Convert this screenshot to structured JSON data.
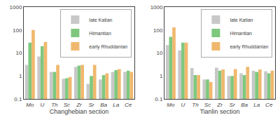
{
  "chart_data": [
    {
      "type": "bar",
      "categories": [
        "Mo",
        "U",
        "Th",
        "Sc",
        "Zr",
        "Sr",
        "Ba",
        "La",
        "Ce"
      ],
      "x_label": "Changhebian section",
      "series": [
        {
          "name": "late Katian",
          "color": "#c8c8c8",
          "values": [
            3.0,
            7.0,
            1.5,
            0.75,
            2.5,
            0.45,
            0.7,
            1.5,
            1.5
          ]
        },
        {
          "name": "Himantian",
          "color": "#7ec87e",
          "values": [
            28.0,
            20.0,
            1.5,
            0.8,
            2.8,
            1.0,
            1.1,
            1.8,
            1.7
          ]
        },
        {
          "name": "early Rhuddanian",
          "color": "#f0b86e",
          "values": [
            100.0,
            30.0,
            3.0,
            0.9,
            3.0,
            3.0,
            1.3,
            2.0,
            1.5
          ]
        }
      ],
      "ylim": [
        0.1,
        1000
      ],
      "yticks": [
        0.1,
        1,
        10,
        100,
        1000
      ],
      "log": "y",
      "grid": false,
      "legend": "upper right"
    },
    {
      "type": "bar",
      "categories": [
        "Mo",
        "U",
        "Th",
        "Sc",
        "Zr",
        "Sr",
        "Ba",
        "La",
        "Ce"
      ],
      "x_label": "Tianlin section",
      "series": [
        {
          "name": "late Katian",
          "color": "#c8c8c8",
          "values": [
            22.0,
            13.0,
            2.2,
            0.7,
            2.3,
            1.0,
            1.3,
            1.7,
            1.6
          ]
        },
        {
          "name": "Himantian",
          "color": "#7ec87e",
          "values": [
            50.0,
            28.0,
            1.1,
            0.7,
            1.7,
            1.0,
            1.1,
            1.5,
            1.3
          ]
        },
        {
          "name": "early Rhuddanian",
          "color": "#f0b86e",
          "values": [
            130.0,
            28.0,
            1.1,
            0.55,
            1.9,
            2.0,
            2.5,
            1.9,
            1.7
          ]
        }
      ],
      "ylim": [
        0.1,
        1000
      ],
      "yticks": [
        0.1,
        1,
        10,
        100,
        1000
      ],
      "log": "y",
      "grid": false,
      "legend": "upper right"
    }
  ]
}
